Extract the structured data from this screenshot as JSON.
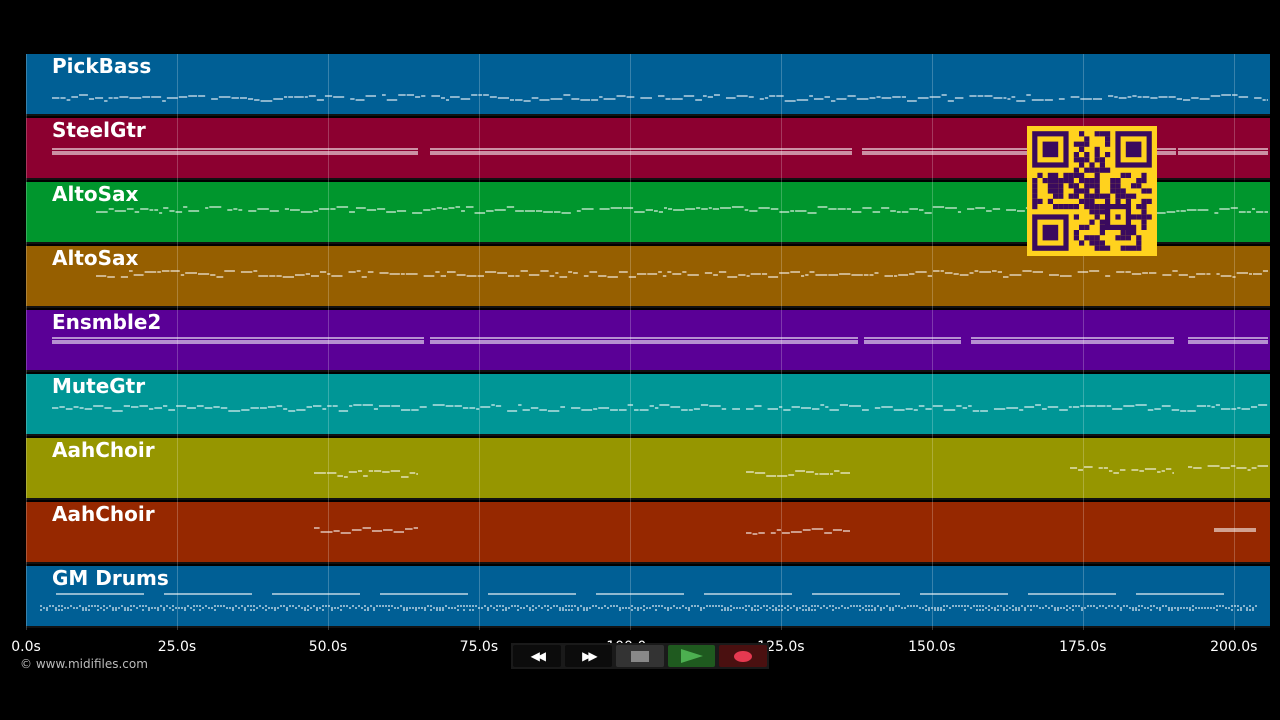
{
  "app": {
    "copyright": "© www.midifiles.com"
  },
  "tracks": [
    {
      "name": "PickBass",
      "color": "#005f95",
      "pattern": "melody"
    },
    {
      "name": "SteelGtr",
      "color": "#8c0030",
      "pattern": "sustain"
    },
    {
      "name": "AltoSax",
      "color": "#00962d",
      "pattern": "melody"
    },
    {
      "name": "AltoSax",
      "color": "#965f00",
      "pattern": "melody"
    },
    {
      "name": "Ensmble2",
      "color": "#5a0096",
      "pattern": "sustain"
    },
    {
      "name": "MuteGtr",
      "color": "#009696",
      "pattern": "melody"
    },
    {
      "name": "AahChoir",
      "color": "#969600",
      "pattern": "sparse"
    },
    {
      "name": "AahChoir",
      "color": "#962800",
      "pattern": "sparse2"
    },
    {
      "name": "GM Drums",
      "color": "#005f95",
      "pattern": "drums"
    }
  ],
  "timeline": {
    "start_s": 0,
    "end_s": 206,
    "ticks": [
      "0.0s",
      "25.0s",
      "50.0s",
      "75.0s",
      "100.0s",
      "125.0s",
      "150.0s",
      "175.0s",
      "200.0s"
    ]
  },
  "transport": {
    "buttons": [
      {
        "name": "rewind-button",
        "icon": "rewind-icon",
        "glyph": "◀◀"
      },
      {
        "name": "fast-forward-button",
        "icon": "fast-forward-icon",
        "glyph": "▶▶"
      },
      {
        "name": "stop-button",
        "icon": "stop-icon",
        "glyph": "■"
      },
      {
        "name": "play-button",
        "icon": "play-icon",
        "glyph": "▶"
      },
      {
        "name": "record-button",
        "icon": "record-icon",
        "glyph": "●"
      }
    ],
    "colors": {
      "stop": "#888888",
      "play": "#4caf50",
      "record": "#e53950"
    }
  },
  "qr_code": {
    "color_fg": "#3a0a5e",
    "color_bg": "#ffd21e"
  }
}
